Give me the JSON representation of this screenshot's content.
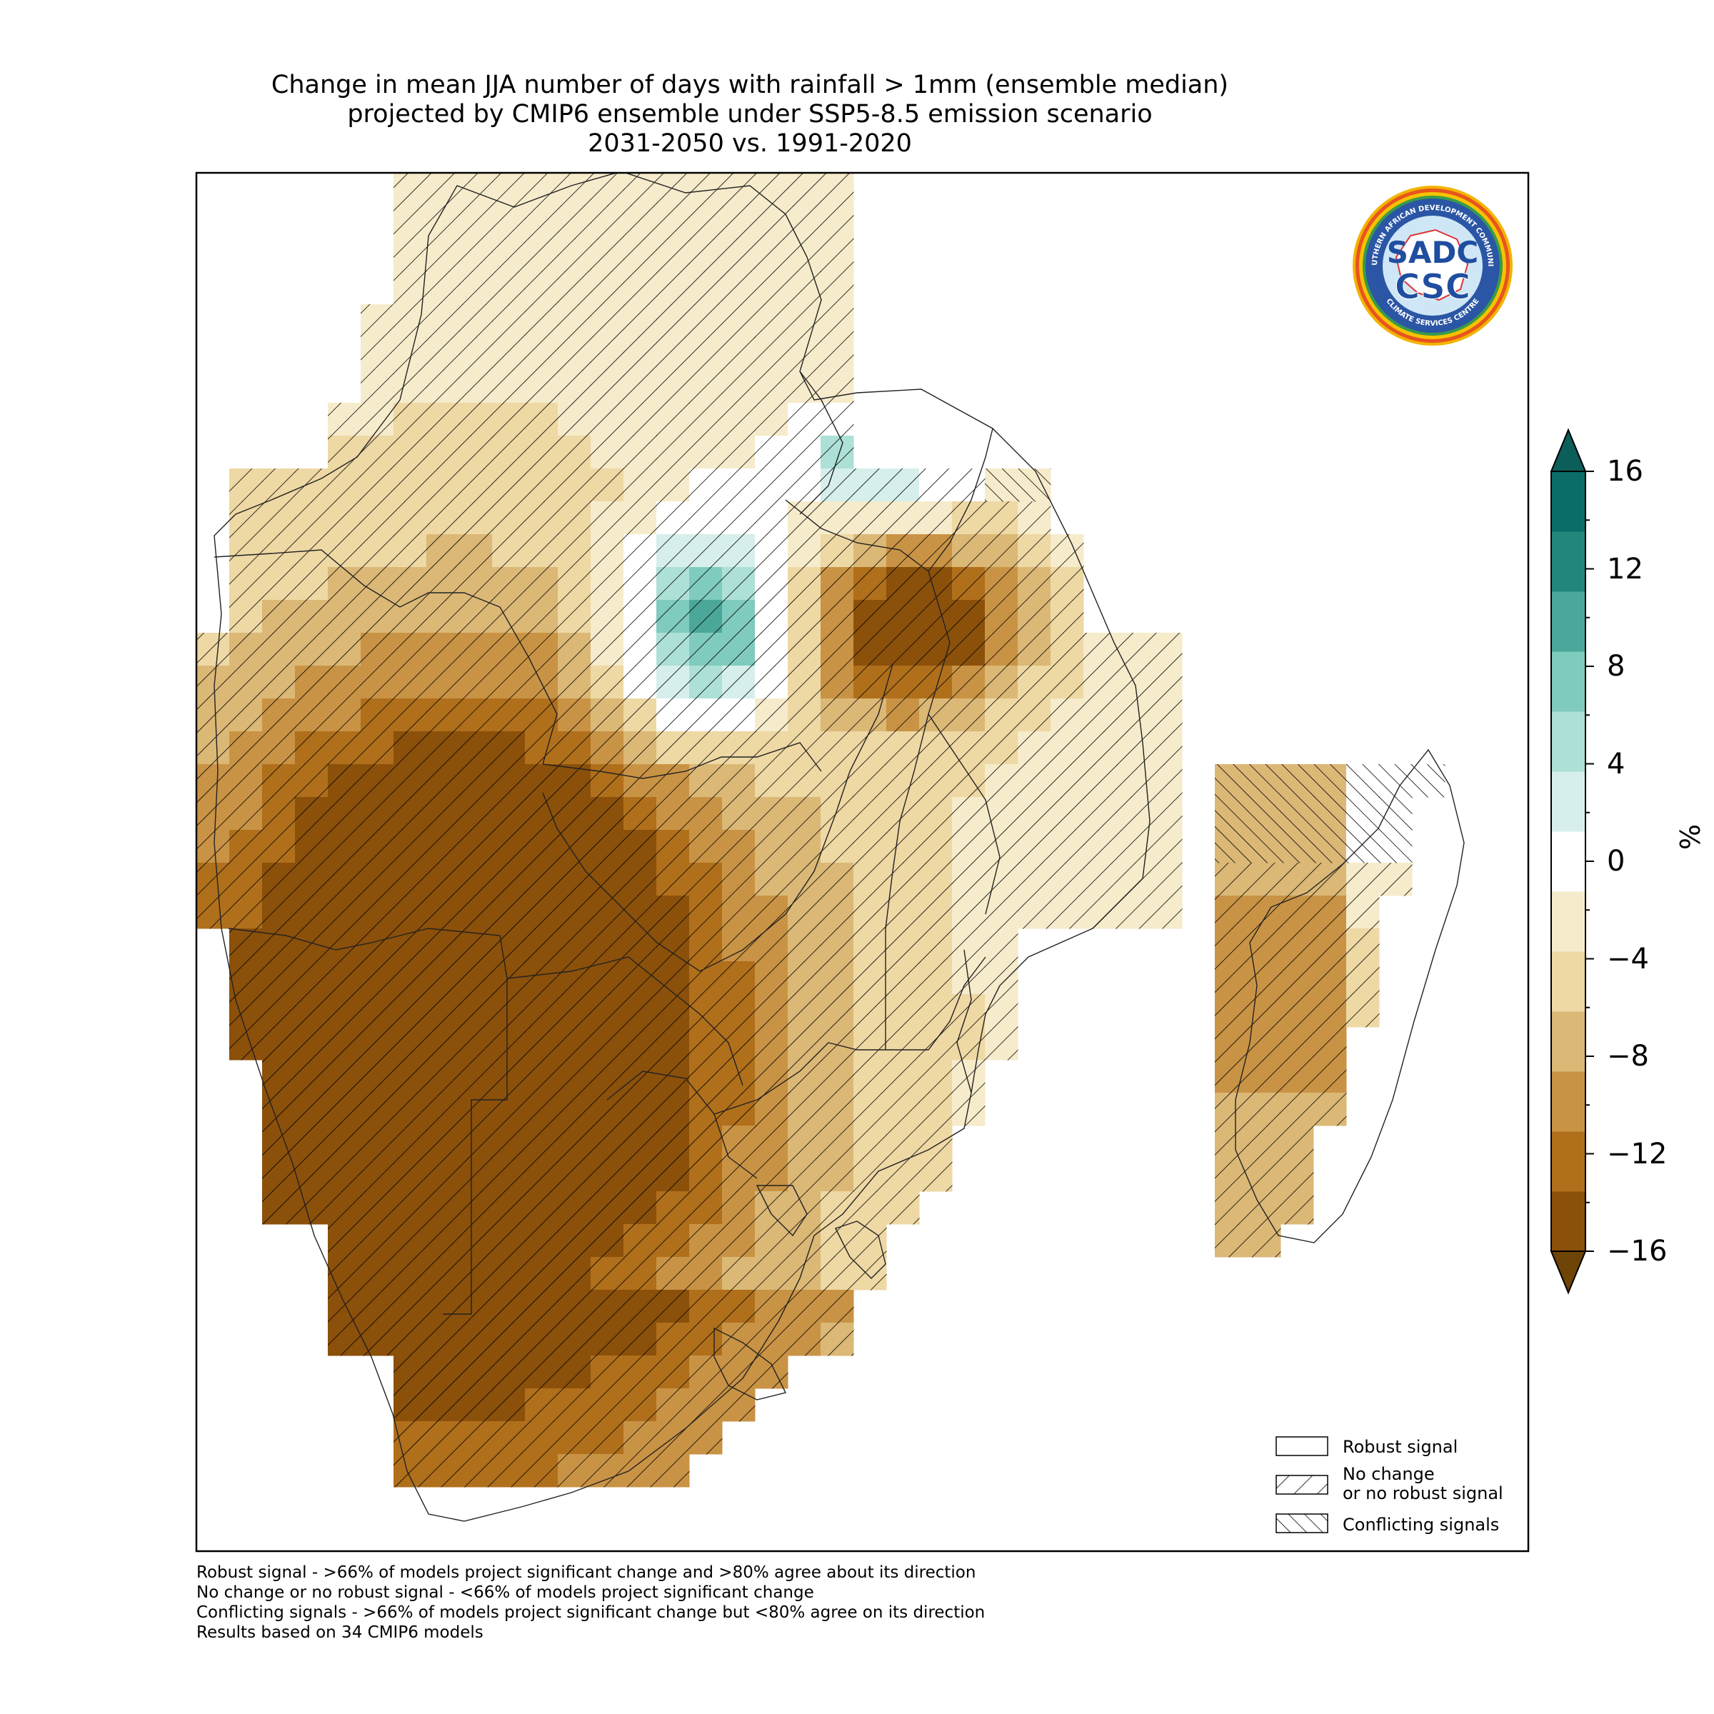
{
  "title": {
    "line1": "Change in mean JJA number of days with rainfall > 1mm (ensemble median)",
    "line2": "projected by CMIP6 ensemble under SSP5-8.5 emission scenario",
    "line3": "2031-2050 vs. 1991-2020"
  },
  "logo": {
    "text_main": "SADC",
    "text_sub": "CSC",
    "ring_top": "SOUTHERN AFRICAN DEVELOPMENT COMMUNITY",
    "ring_bottom": "CLIMATE SERVICES CENTRE"
  },
  "colorbar": {
    "unit": "%",
    "ticks": [
      "16",
      "12",
      "8",
      "4",
      "0",
      "−4",
      "−8",
      "−12",
      "−16"
    ],
    "colors": {
      "above": "#0b5e59",
      "below": "#6e4407",
      "classes": [
        "#8b500a",
        "#b06f1b",
        "#c99345",
        "#dbb876",
        "#eed8a4",
        "#f6ebcb",
        "#ffffff",
        "#d6efec",
        "#ade0d6",
        "#7fcbbd",
        "#4aa79a",
        "#23867c",
        "#0b6d67"
      ]
    }
  },
  "legend": {
    "robust": "Robust signal",
    "nochange_line1": "No change",
    "nochange_line2": "or no robust signal",
    "conflicting": "Conflicting signals"
  },
  "footnotes": [
    "Robust signal - >66% of models project significant change and >80% agree about its direction",
    "No change or no robust signal - <66% of models project significant change",
    "Conflicting signals - >66% of models project significant change but <80% agree on its direction",
    "Results based on 34 CMIP6 models"
  ]
}
